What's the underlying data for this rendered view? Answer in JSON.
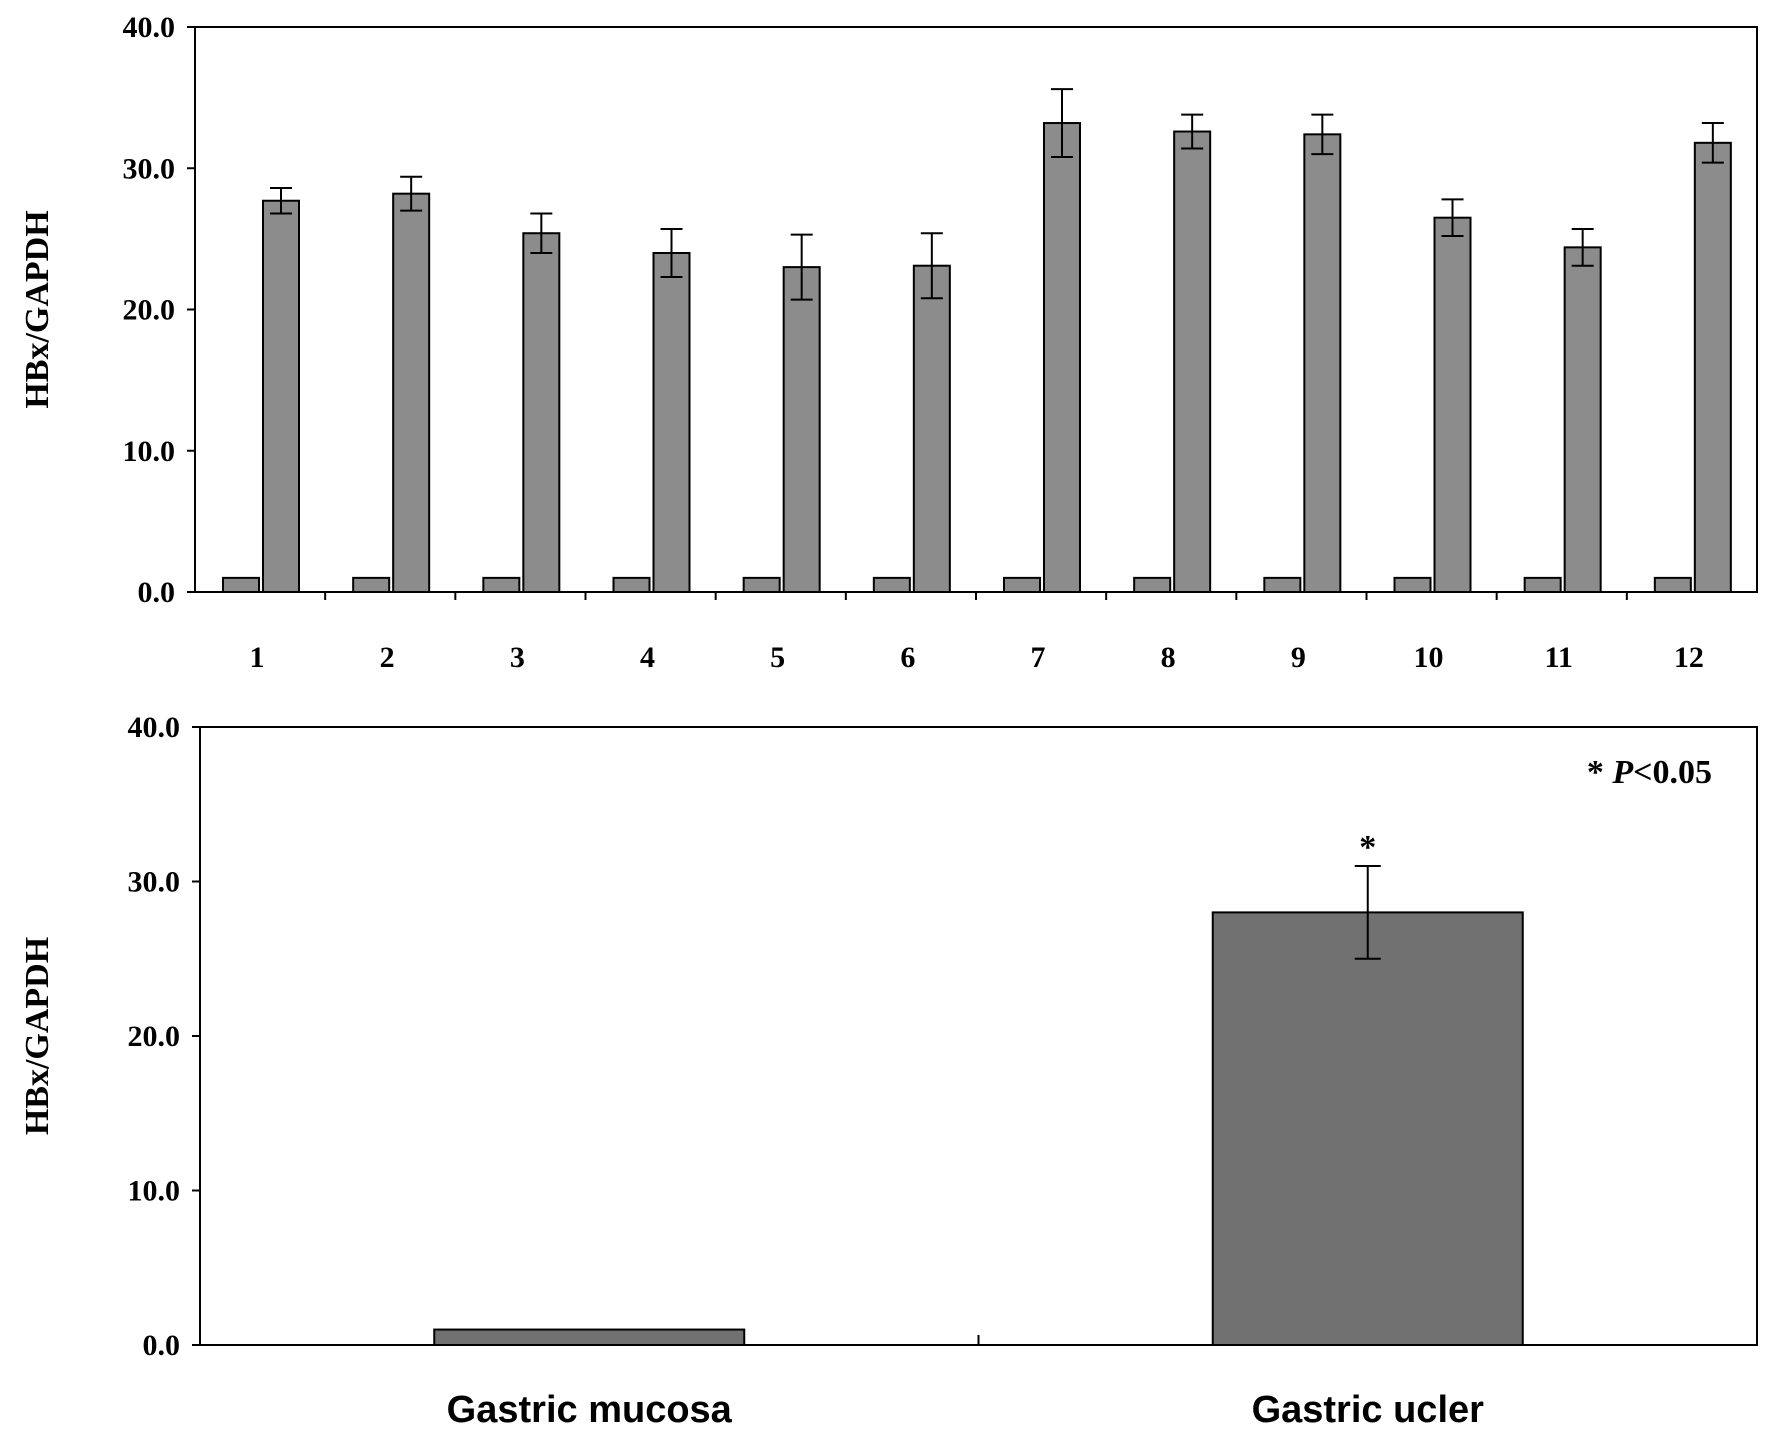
{
  "chart_data": [
    {
      "type": "bar",
      "ylabel": "HBx/GAPDH",
      "ylim": [
        0,
        40
      ],
      "yticks": [
        "0.0",
        "10.0",
        "20.0",
        "30.0",
        "40.0"
      ],
      "categories": [
        "1",
        "2",
        "3",
        "4",
        "5",
        "6",
        "7",
        "8",
        "9",
        "10",
        "11",
        "12"
      ],
      "series": [
        {
          "values": [
            1,
            1,
            1,
            1,
            1,
            1,
            1,
            1,
            1,
            1,
            1,
            1
          ]
        },
        {
          "values": [
            27.7,
            28.2,
            25.4,
            24.0,
            23.0,
            23.1,
            33.2,
            32.6,
            32.4,
            26.5,
            24.4,
            31.8
          ],
          "errors": [
            0.9,
            1.2,
            1.4,
            1.7,
            2.3,
            2.3,
            2.4,
            1.2,
            1.4,
            1.3,
            1.3,
            1.4
          ]
        }
      ],
      "colors": [
        "#8c8c8c",
        "#8c8c8c"
      ]
    },
    {
      "type": "bar",
      "ylabel": "HBx/GAPDH",
      "ylim": [
        0,
        40
      ],
      "yticks": [
        "0.0",
        "10.0",
        "20.0",
        "30.0",
        "40.0"
      ],
      "categories": [
        "Gastric mucosa",
        "Gastric ucler"
      ],
      "values": [
        1.0,
        28.0
      ],
      "errors": [
        0,
        3.0
      ],
      "significance": [
        "",
        "*"
      ],
      "annotation": {
        "star": "*",
        "p_label": "P",
        "p_text": "<0.05"
      },
      "colors": [
        "#717171",
        "#717171"
      ]
    }
  ]
}
